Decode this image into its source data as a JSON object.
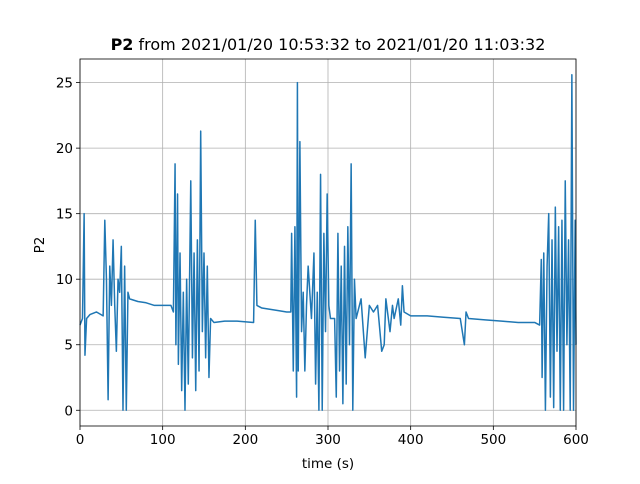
{
  "chart_data": {
    "type": "line",
    "title": {
      "bold": "P2",
      "text": "from 2021/01/20 10:53:32 to 2021/01/20 11:03:32"
    },
    "xlabel": "time (s)",
    "ylabel": "P2",
    "color": "#1f77b4",
    "grid": true,
    "xlim": [
      0,
      600
    ],
    "xticks": [
      0,
      100,
      200,
      300,
      400,
      500,
      600
    ],
    "ylim": [
      -1.2,
      26.8
    ],
    "yticks": [
      0,
      5,
      10,
      15,
      20,
      25
    ],
    "x": [
      0,
      3,
      5,
      6,
      8,
      12,
      20,
      28,
      30,
      32,
      34,
      36,
      38,
      40,
      42,
      44,
      46,
      48,
      50,
      52,
      54,
      56,
      58,
      60,
      70,
      80,
      90,
      100,
      110,
      113,
      115,
      116,
      118,
      119,
      121,
      123,
      125,
      127,
      129,
      131,
      134,
      136,
      138,
      140,
      142,
      144,
      146,
      148,
      150,
      152,
      154,
      156,
      158,
      162,
      175,
      190,
      210,
      212,
      214,
      220,
      240,
      250,
      255,
      256,
      258,
      260,
      262,
      263,
      264,
      266,
      268,
      270,
      272,
      274,
      276,
      280,
      283,
      285,
      287,
      289,
      291,
      293,
      295,
      297,
      299,
      301,
      303,
      308,
      310,
      312,
      314,
      316,
      318,
      320,
      322,
      324,
      326,
      328,
      330,
      332,
      334,
      340,
      345,
      350,
      355,
      360,
      365,
      368,
      370,
      375,
      378,
      380,
      385,
      388,
      390,
      392,
      400,
      420,
      440,
      460,
      465,
      467,
      470,
      490,
      510,
      530,
      550,
      556,
      558,
      559,
      561,
      563,
      565,
      567,
      569,
      571,
      573,
      575,
      577,
      579,
      581,
      583,
      585,
      587,
      589,
      591,
      593,
      595,
      597,
      599,
      600
    ],
    "values": [
      6.5,
      7,
      15,
      4.2,
      7,
      7.3,
      7.5,
      7.2,
      14.5,
      10,
      0.8,
      11,
      8,
      13,
      8,
      4.5,
      10,
      9,
      12.5,
      0,
      11,
      0,
      9,
      8.5,
      8.3,
      8.2,
      8,
      8,
      8,
      7.5,
      18.8,
      5,
      16.5,
      3.5,
      12,
      1.5,
      9,
      0,
      10,
      2,
      17.5,
      4,
      12,
      1.5,
      13,
      3,
      21.3,
      6,
      12,
      4,
      11,
      2.5,
      7,
      6.7,
      6.8,
      6.8,
      6.7,
      14.5,
      8,
      7.8,
      7.6,
      7.5,
      7.5,
      13.5,
      3,
      14,
      1,
      25,
      3,
      20.5,
      6,
      9,
      3,
      8,
      11,
      7,
      12,
      2,
      9,
      0,
      18,
      0,
      13.5,
      6,
      16.5,
      8,
      7,
      7,
      1,
      13.5,
      3,
      11,
      0.5,
      12.5,
      2,
      14,
      5,
      18.8,
      0,
      10,
      7,
      8.5,
      4,
      8,
      7.5,
      8,
      4.5,
      5,
      8.5,
      6,
      8,
      7,
      8.5,
      6.5,
      9.5,
      7.5,
      7.2,
      7.2,
      7.1,
      7,
      5,
      7.5,
      7,
      6.9,
      6.8,
      6.7,
      6.7,
      6.5,
      11.5,
      2.5,
      12,
      0,
      11,
      15,
      1,
      13,
      0.2,
      15.5,
      4.5,
      14,
      0,
      14.5,
      0,
      17.5,
      5,
      13,
      0,
      25.6,
      0,
      14.5,
      5
    ]
  }
}
